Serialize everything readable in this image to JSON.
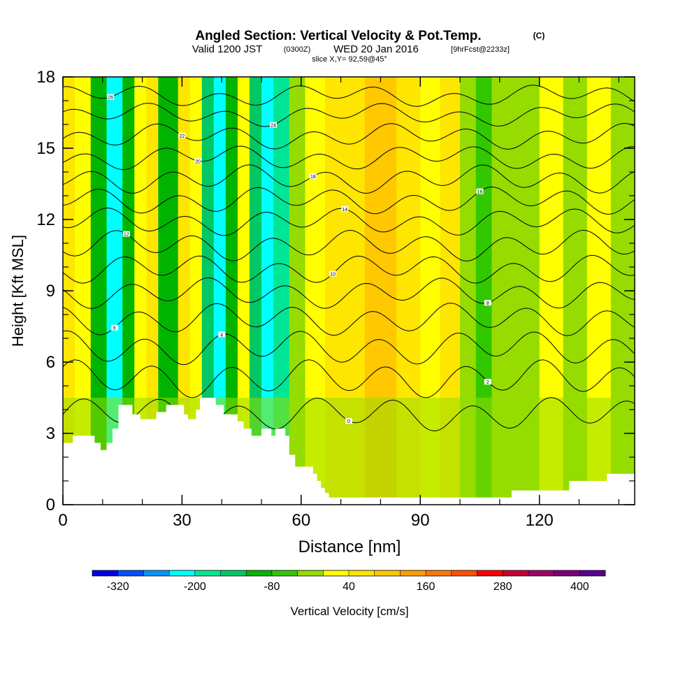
{
  "chart_data": {
    "type": "heatmap",
    "title": "Angled Section: Vertical Velocity & Pot.Temp.",
    "title_unit": "(C)",
    "subtitle": {
      "prefix": "Valid 1200 JST",
      "utc": "(0300Z)",
      "date": "WED 20 Jan 2016",
      "forecast": "[9hrFcst@2233z]"
    },
    "slice_text": "slice X,Y= 92,59@45°",
    "xlabel": "Distance [nm]",
    "ylabel": "Height [Kft MSL]",
    "xlim": [
      0,
      144
    ],
    "ylim": [
      0,
      18
    ],
    "x_ticks": [
      "0",
      "30",
      "60",
      "90",
      "120"
    ],
    "x_tick_values": [
      0,
      30,
      60,
      90,
      120
    ],
    "y_ticks": [
      "0",
      "3",
      "6",
      "9",
      "12",
      "15",
      "18"
    ],
    "y_tick_values": [
      0,
      3,
      6,
      9,
      12,
      15,
      18
    ],
    "colorbar": {
      "label": "Vertical Velocity [cm/s]",
      "levels": [
        -360,
        -320,
        -280,
        -240,
        -200,
        -160,
        -120,
        -80,
        -40,
        0,
        40,
        80,
        120,
        160,
        200,
        240,
        280,
        320,
        360,
        400,
        440
      ],
      "tick_labels": [
        "-320",
        "-200",
        "-80",
        "40",
        "160",
        "280",
        "400"
      ],
      "tick_values": [
        -320,
        -200,
        -80,
        40,
        160,
        280,
        400
      ],
      "colors": [
        "#0000e6",
        "#0050ff",
        "#0096ff",
        "#00ffff",
        "#00e696",
        "#00c864",
        "#00b400",
        "#32c800",
        "#96dc00",
        "#ffff00",
        "#ffe600",
        "#ffc800",
        "#ffa000",
        "#ff7800",
        "#ff5000",
        "#ff0000",
        "#c80032",
        "#a00064",
        "#780078",
        "#5a008c"
      ]
    },
    "velocity_columns": [
      {
        "x_range": [
          0,
          3
        ],
        "value": 60
      },
      {
        "x_range": [
          3,
          7
        ],
        "value": 5
      },
      {
        "x_range": [
          7,
          11
        ],
        "value": -95
      },
      {
        "x_range": [
          11,
          15
        ],
        "value": -230
      },
      {
        "x_range": [
          15,
          18
        ],
        "value": -95
      },
      {
        "x_range": [
          18,
          21
        ],
        "value": 30
      },
      {
        "x_range": [
          21,
          24
        ],
        "value": 60
      },
      {
        "x_range": [
          24,
          29
        ],
        "value": -120
      },
      {
        "x_range": [
          29,
          32
        ],
        "value": 60
      },
      {
        "x_range": [
          32,
          35
        ],
        "value": 5
      },
      {
        "x_range": [
          35,
          38
        ],
        "value": -160
      },
      {
        "x_range": [
          38,
          41
        ],
        "value": -220
      },
      {
        "x_range": [
          41,
          44
        ],
        "value": -120
      },
      {
        "x_range": [
          44,
          47
        ],
        "value": 20
      },
      {
        "x_range": [
          47,
          50
        ],
        "value": -160
      },
      {
        "x_range": [
          50,
          53
        ],
        "value": -230
      },
      {
        "x_range": [
          53,
          57
        ],
        "value": -170
      },
      {
        "x_range": [
          57,
          61
        ],
        "value": -20
      },
      {
        "x_range": [
          61,
          66
        ],
        "value": 10
      },
      {
        "x_range": [
          66,
          70
        ],
        "value": 50
      },
      {
        "x_range": [
          70,
          76
        ],
        "value": 75
      },
      {
        "x_range": [
          76,
          84
        ],
        "value": 90
      },
      {
        "x_range": [
          84,
          90
        ],
        "value": 55
      },
      {
        "x_range": [
          90,
          95
        ],
        "value": 10
      },
      {
        "x_range": [
          95,
          100
        ],
        "value": 55
      },
      {
        "x_range": [
          100,
          104
        ],
        "value": -10
      },
      {
        "x_range": [
          104,
          108
        ],
        "value": -70
      },
      {
        "x_range": [
          108,
          114
        ],
        "value": -20
      },
      {
        "x_range": [
          114,
          120
        ],
        "value": -30
      },
      {
        "x_range": [
          120,
          126
        ],
        "value": 10
      },
      {
        "x_range": [
          126,
          132
        ],
        "value": -30
      },
      {
        "x_range": [
          132,
          138
        ],
        "value": 10
      },
      {
        "x_range": [
          138,
          144
        ],
        "value": -30
      }
    ],
    "lower_layer": {
      "top_kft": 4.5,
      "value": -40
    },
    "terrain": [
      [
        0,
        2.6
      ],
      [
        2.5,
        2.6
      ],
      [
        2.5,
        2.9
      ],
      [
        8,
        2.9
      ],
      [
        8,
        2.6
      ],
      [
        9.5,
        2.6
      ],
      [
        9.5,
        2.3
      ],
      [
        11,
        2.3
      ],
      [
        11,
        2.6
      ],
      [
        12.5,
        2.6
      ],
      [
        12.5,
        3.2
      ],
      [
        14,
        3.2
      ],
      [
        14,
        4.2
      ],
      [
        17.5,
        4.2
      ],
      [
        17.5,
        3.8
      ],
      [
        19.5,
        3.8
      ],
      [
        19.5,
        3.6
      ],
      [
        23.5,
        3.6
      ],
      [
        23.5,
        3.9
      ],
      [
        26,
        3.9
      ],
      [
        26,
        4.2
      ],
      [
        30.5,
        4.2
      ],
      [
        30.5,
        3.8
      ],
      [
        31.5,
        3.8
      ],
      [
        31.5,
        3.6
      ],
      [
        33.5,
        3.6
      ],
      [
        33.5,
        4.0
      ],
      [
        34.5,
        4.0
      ],
      [
        34.5,
        4.5
      ],
      [
        38.5,
        4.5
      ],
      [
        38.5,
        4.2
      ],
      [
        40.5,
        4.2
      ],
      [
        40.5,
        3.8
      ],
      [
        44,
        3.8
      ],
      [
        44,
        3.5
      ],
      [
        45.5,
        3.5
      ],
      [
        45.5,
        3.2
      ],
      [
        47.5,
        3.2
      ],
      [
        47.5,
        2.9
      ],
      [
        50,
        2.9
      ],
      [
        50,
        3.2
      ],
      [
        52.5,
        3.2
      ],
      [
        52.5,
        2.9
      ],
      [
        53.5,
        2.9
      ],
      [
        53.5,
        3.2
      ],
      [
        56,
        3.2
      ],
      [
        56,
        2.9
      ],
      [
        57,
        2.9
      ],
      [
        57,
        2.1
      ],
      [
        58.5,
        2.1
      ],
      [
        58.5,
        1.6
      ],
      [
        63,
        1.6
      ],
      [
        63,
        1.3
      ],
      [
        64,
        1.3
      ],
      [
        64,
        1.0
      ],
      [
        65,
        1.0
      ],
      [
        65,
        0.7
      ],
      [
        66,
        0.7
      ],
      [
        66,
        0.5
      ],
      [
        67,
        0.5
      ],
      [
        67,
        0.3
      ],
      [
        113,
        0.3
      ],
      [
        113,
        0.6
      ],
      [
        127.5,
        0.6
      ],
      [
        127.5,
        1.0
      ],
      [
        137,
        1.0
      ],
      [
        137,
        1.3
      ],
      [
        144,
        1.3
      ],
      [
        144,
        0
      ],
      [
        0,
        0
      ]
    ],
    "theta_contours": [
      {
        "base_kft": 3.8,
        "amp": 0.55,
        "label": "0",
        "label_x": 72
      },
      {
        "base_kft": 5.3,
        "amp": 0.6,
        "label": "2",
        "label_x": 107
      },
      {
        "base_kft": 6.6,
        "amp": 0.55,
        "label": "4",
        "label_x": 40
      },
      {
        "base_kft": 7.8,
        "amp": 0.5,
        "label": "6",
        "label_x": 13
      },
      {
        "base_kft": 8.9,
        "amp": 0.45,
        "label": "8",
        "label_x": 107
      },
      {
        "base_kft": 9.9,
        "amp": 0.45,
        "label": "10",
        "label_x": 68
      },
      {
        "base_kft": 10.9,
        "amp": 0.45,
        "label": "12",
        "label_x": 16
      },
      {
        "base_kft": 11.9,
        "amp": 0.4,
        "label": "14",
        "label_x": 71
      },
      {
        "base_kft": 12.8,
        "amp": 0.4,
        "label": "16",
        "label_x": 105
      },
      {
        "base_kft": 13.7,
        "amp": 0.4,
        "label": "18",
        "label_x": 63
      },
      {
        "base_kft": 14.6,
        "amp": 0.35,
        "label": "20",
        "label_x": 34
      },
      {
        "base_kft": 15.5,
        "amp": 0.35,
        "label": "22",
        "label_x": 30
      },
      {
        "base_kft": 16.4,
        "amp": 0.3,
        "label": "24",
        "label_x": 53
      },
      {
        "base_kft": 17.2,
        "amp": 0.3,
        "label": "26",
        "label_x": 12
      }
    ]
  }
}
